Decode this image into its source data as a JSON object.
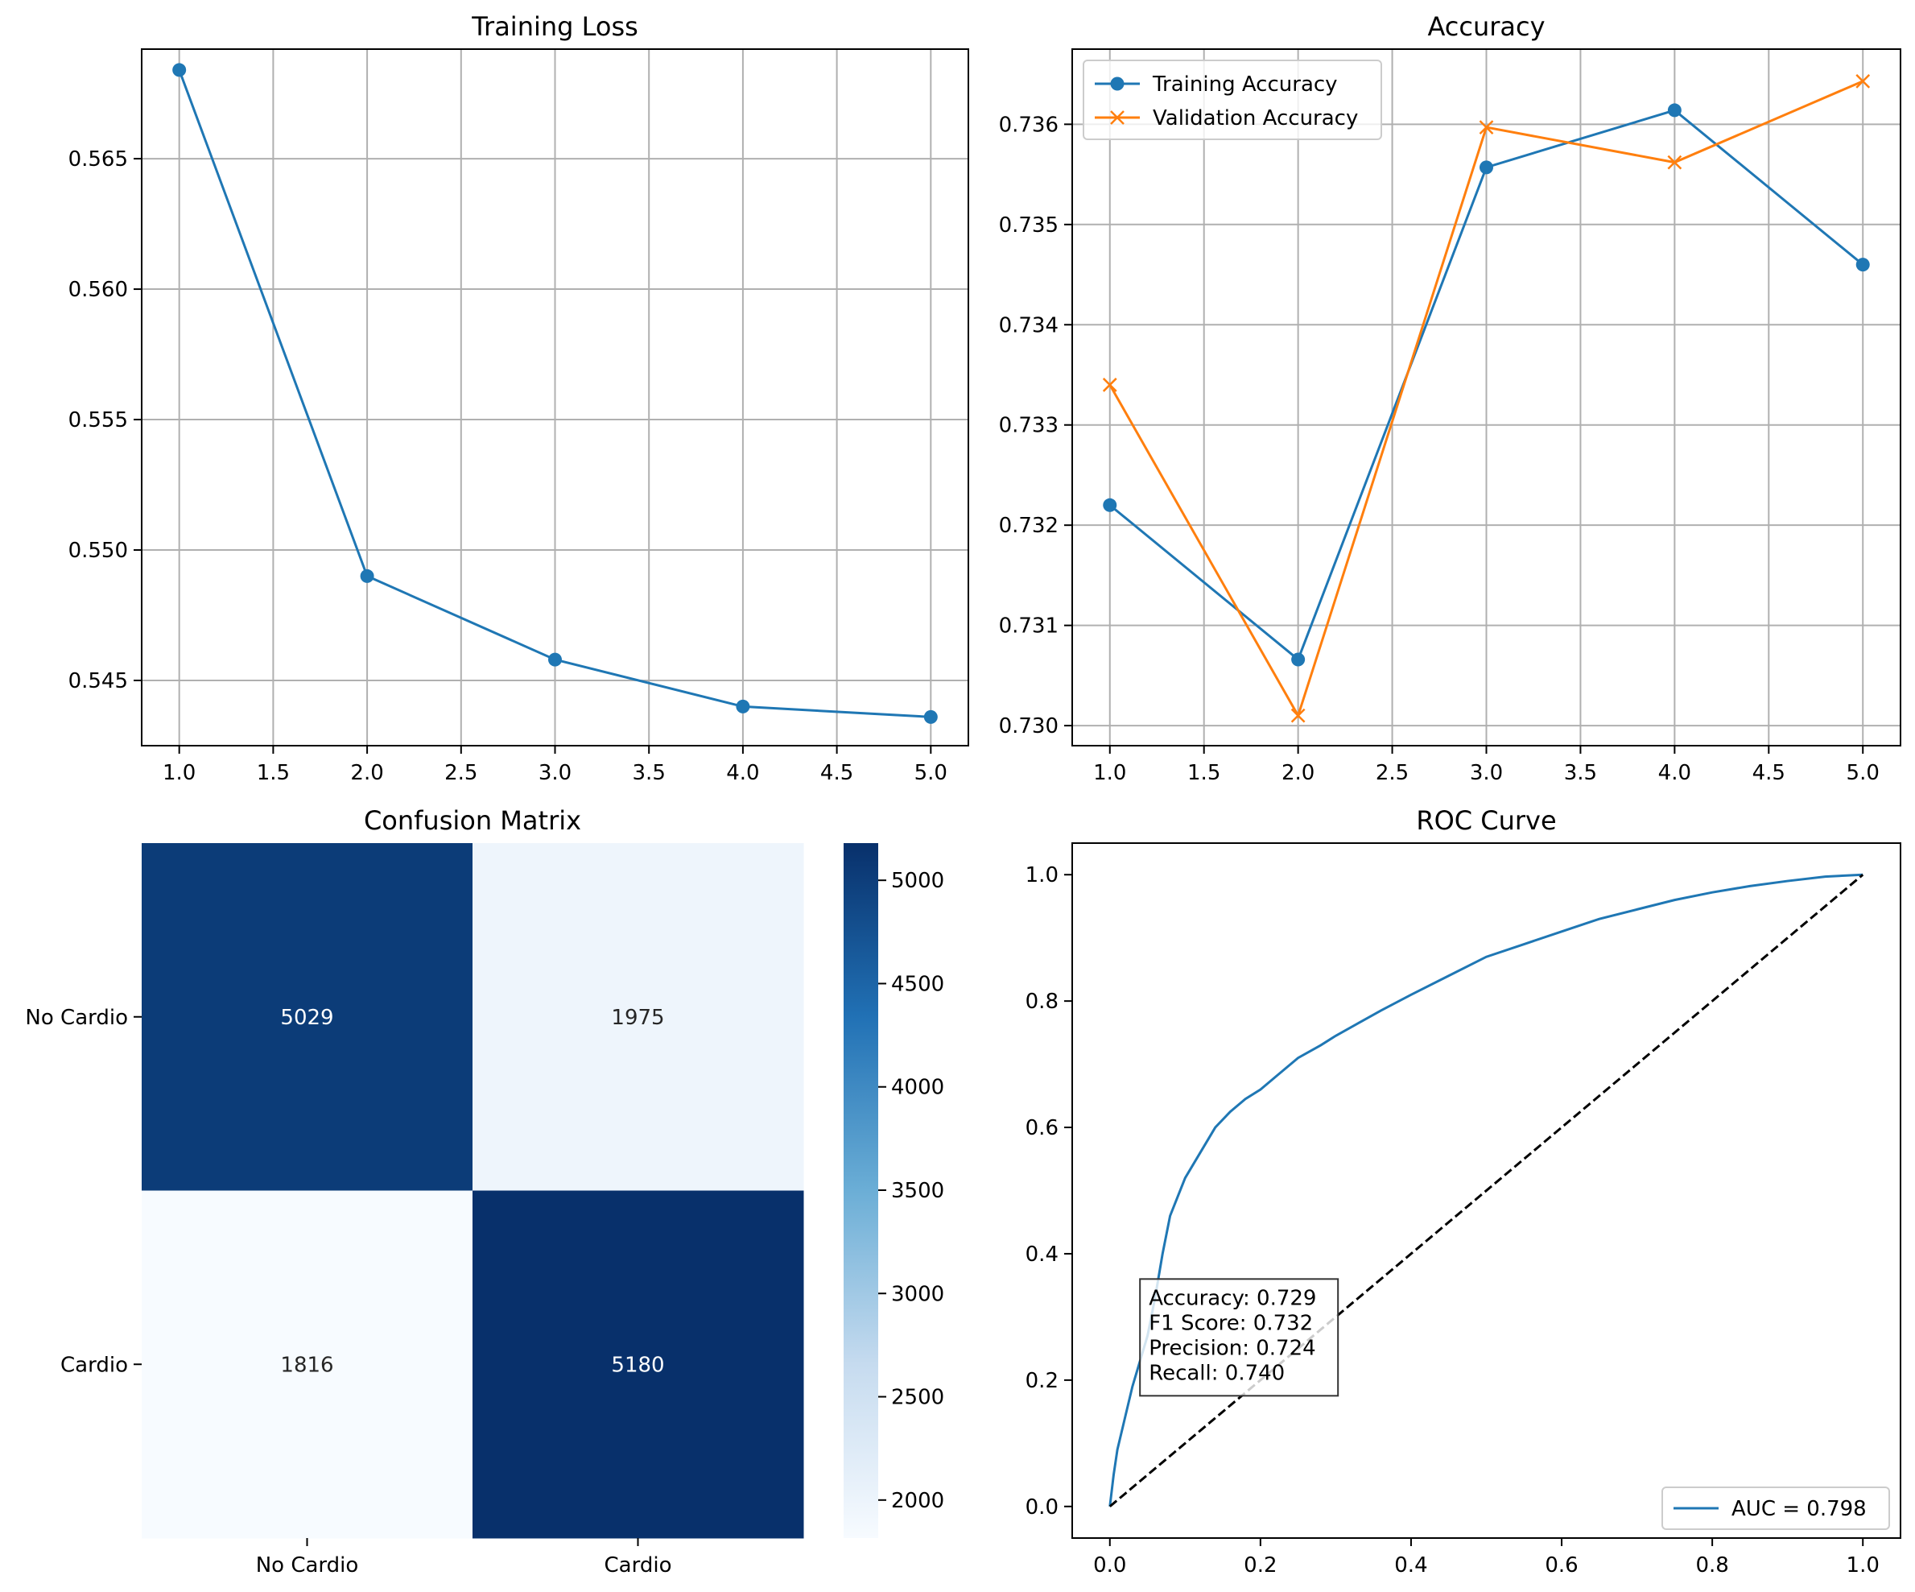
{
  "chart_data": [
    {
      "type": "line",
      "title": "Training Loss",
      "xlabel": "",
      "ylabel": "",
      "x": [
        1.0,
        2.0,
        3.0,
        4.0,
        5.0
      ],
      "xlim": [
        0.8,
        5.2
      ],
      "ylim": [
        0.5425,
        0.5692
      ],
      "xticks": [
        1.0,
        1.5,
        2.0,
        2.5,
        3.0,
        3.5,
        4.0,
        4.5,
        5.0
      ],
      "xtick_labels": [
        "1.0",
        "1.5",
        "2.0",
        "2.5",
        "3.0",
        "3.5",
        "4.0",
        "4.5",
        "5.0"
      ],
      "yticks": [
        0.545,
        0.55,
        0.555,
        0.56,
        0.565
      ],
      "ytick_labels": [
        "0.545",
        "0.550",
        "0.555",
        "0.560",
        "0.565"
      ],
      "grid": true,
      "series": [
        {
          "values": [
            0.5684,
            0.549,
            0.5458,
            0.544,
            0.5436
          ],
          "color": "#1f77b4",
          "marker": "circle"
        }
      ]
    },
    {
      "type": "line",
      "title": "Accuracy",
      "xlabel": "",
      "ylabel": "",
      "x": [
        1.0,
        2.0,
        3.0,
        4.0,
        5.0
      ],
      "xlim": [
        0.8,
        5.2
      ],
      "ylim": [
        0.7298,
        0.73675
      ],
      "xticks": [
        1.0,
        1.5,
        2.0,
        2.5,
        3.0,
        3.5,
        4.0,
        4.5,
        5.0
      ],
      "xtick_labels": [
        "1.0",
        "1.5",
        "2.0",
        "2.5",
        "3.0",
        "3.5",
        "4.0",
        "4.5",
        "5.0"
      ],
      "yticks": [
        0.73,
        0.731,
        0.732,
        0.733,
        0.734,
        0.735,
        0.736
      ],
      "ytick_labels": [
        "0.730",
        "0.731",
        "0.732",
        "0.733",
        "0.734",
        "0.735",
        "0.736"
      ],
      "grid": true,
      "legend_position": "top-left",
      "series": [
        {
          "name": "Training Accuracy",
          "values": [
            0.7322,
            0.73066,
            0.73557,
            0.73614,
            0.7346
          ],
          "color": "#1f77b4",
          "marker": "circle"
        },
        {
          "name": "Validation Accuracy",
          "values": [
            0.7334,
            0.7301,
            0.73597,
            0.73562,
            0.73643
          ],
          "color": "#ff7f0e",
          "marker": "x"
        }
      ]
    },
    {
      "type": "heatmap",
      "title": "Confusion Matrix",
      "row_labels": [
        "No Cardio",
        "Cardio"
      ],
      "col_labels": [
        "No Cardio",
        "Cardio"
      ],
      "values": [
        [
          5029,
          1975
        ],
        [
          1816,
          5180
        ]
      ],
      "colormap": "Blues",
      "colorbar_range": [
        1816,
        5180
      ],
      "colorbar_ticks": [
        2000,
        2500,
        3000,
        3500,
        4000,
        4500,
        5000
      ],
      "colorbar_tick_labels": [
        "2000",
        "2500",
        "3000",
        "3500",
        "4000",
        "4500",
        "5000"
      ]
    },
    {
      "type": "line",
      "title": "ROC Curve",
      "xlabel": "",
      "ylabel": "",
      "xlim": [
        -0.05,
        1.05
      ],
      "ylim": [
        -0.05,
        1.05
      ],
      "xticks": [
        0,
        0.2,
        0.4,
        0.6,
        0.8,
        1.0
      ],
      "xtick_labels": [
        "0.0",
        "0.2",
        "0.4",
        "0.6",
        "0.8",
        "1.0"
      ],
      "yticks": [
        0,
        0.2,
        0.4,
        0.6,
        0.8,
        1.0
      ],
      "ytick_labels": [
        "0.0",
        "0.2",
        "0.4",
        "0.6",
        "0.8",
        "1.0"
      ],
      "grid": false,
      "legend_position": "bottom-right",
      "series": [
        {
          "name": "AUC = 0.798",
          "color": "#1f77b4",
          "x": [
            0,
            0.005,
            0.01,
            0.02,
            0.03,
            0.04,
            0.05,
            0.06,
            0.07,
            0.08,
            0.09,
            0.1,
            0.12,
            0.14,
            0.16,
            0.18,
            0.2,
            0.22,
            0.25,
            0.28,
            0.3,
            0.33,
            0.36,
            0.4,
            0.45,
            0.5,
            0.55,
            0.6,
            0.65,
            0.7,
            0.75,
            0.8,
            0.85,
            0.9,
            0.95,
            1.0
          ],
          "y": [
            0,
            0.05,
            0.09,
            0.14,
            0.19,
            0.23,
            0.27,
            0.33,
            0.4,
            0.46,
            0.49,
            0.52,
            0.56,
            0.6,
            0.625,
            0.645,
            0.66,
            0.68,
            0.71,
            0.73,
            0.745,
            0.765,
            0.785,
            0.81,
            0.84,
            0.87,
            0.89,
            0.91,
            0.93,
            0.945,
            0.96,
            0.972,
            0.982,
            0.99,
            0.997,
            1.0
          ]
        },
        {
          "x": [
            0,
            1
          ],
          "y": [
            0,
            1
          ],
          "color": "#000000",
          "style": "dashed"
        }
      ],
      "annotation": [
        "Accuracy: 0.729",
        "F1 Score: 0.732",
        "Precision: 0.724",
        "Recall: 0.740"
      ]
    }
  ]
}
